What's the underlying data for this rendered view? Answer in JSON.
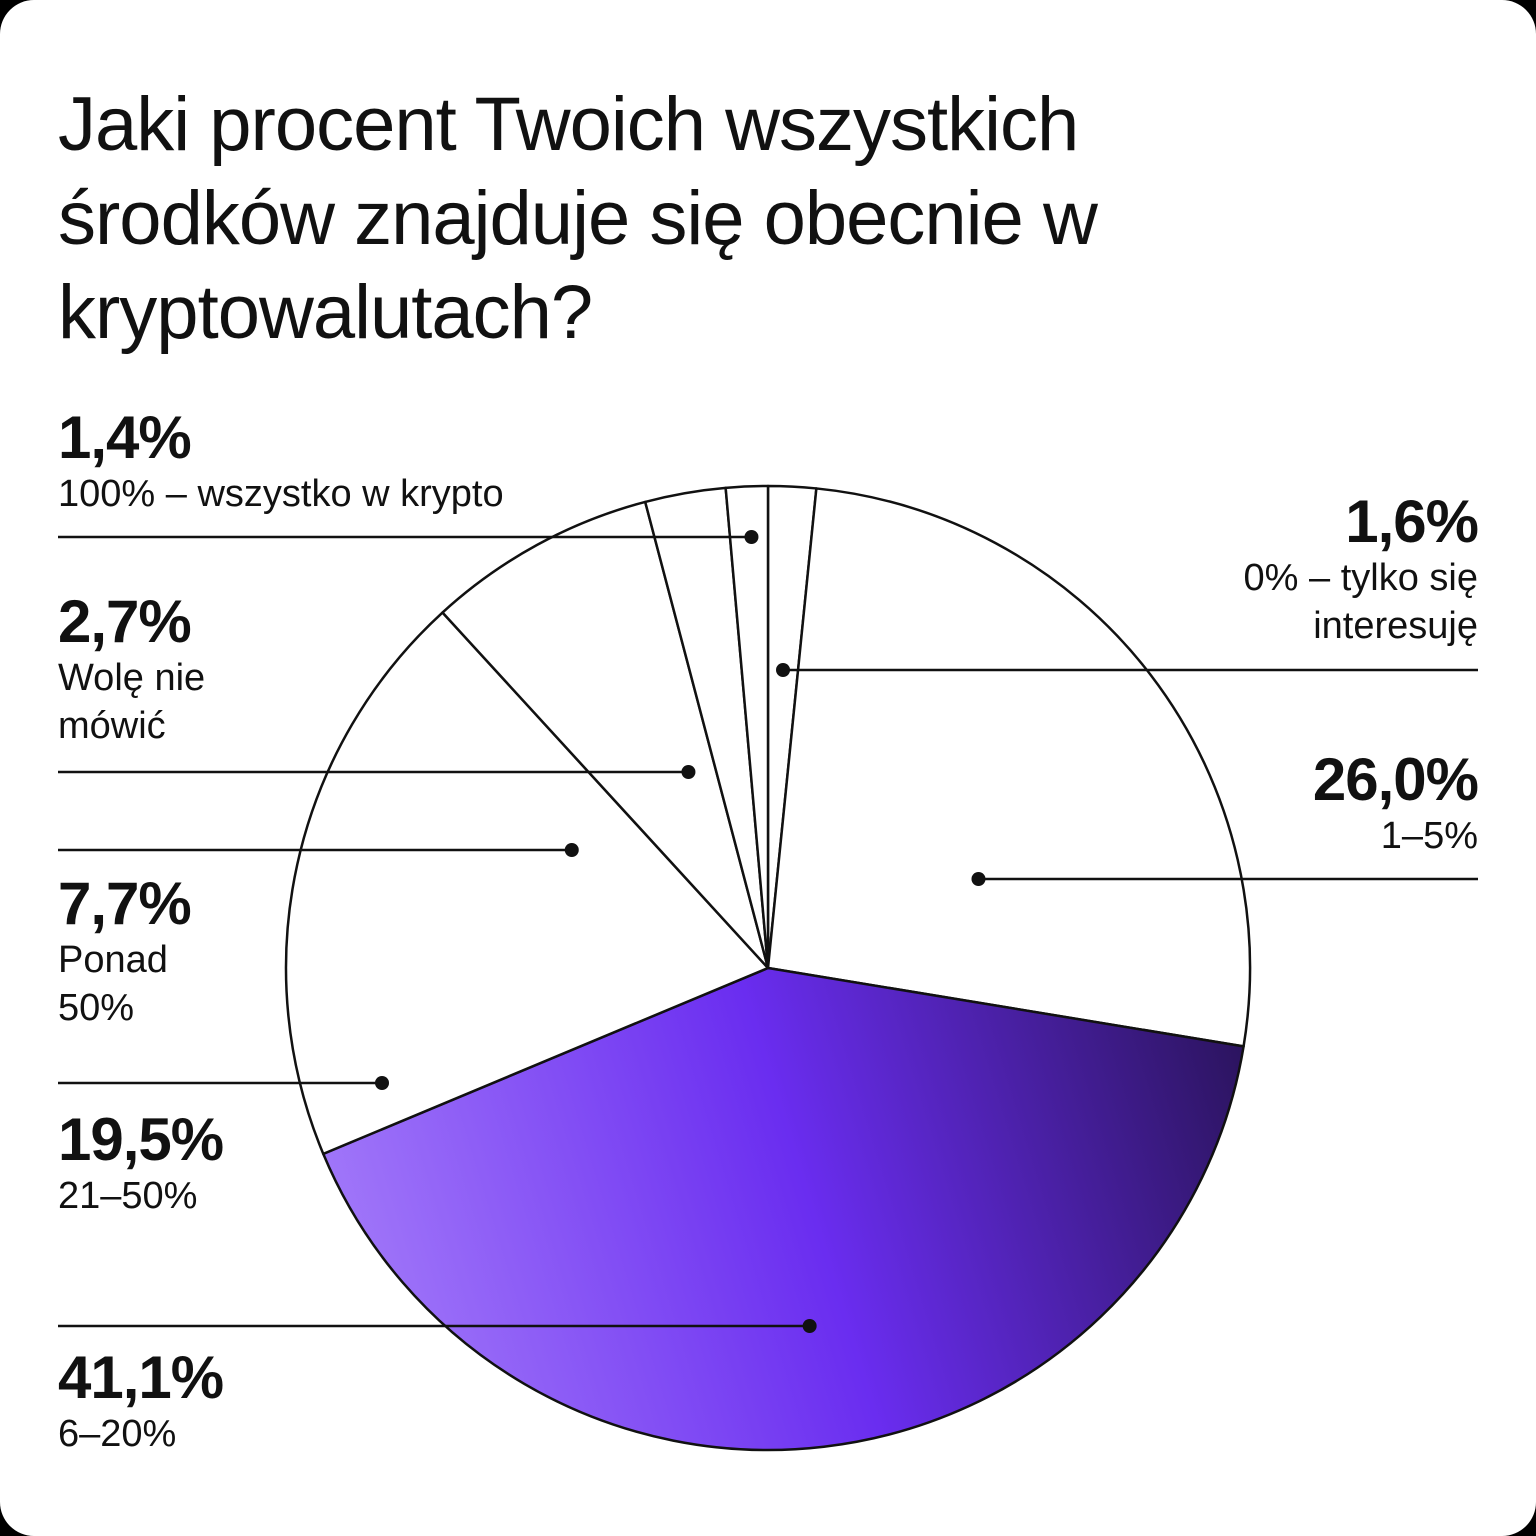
{
  "title": "Jaki procent Twoich wszystkich środków znajduje się obecnie w kryptowalutach?",
  "colors": {
    "background": "#ffffff",
    "outline": "#111111",
    "highlight_gradient": [
      "#a57dfa",
      "#6a2df0",
      "#2c1460"
    ]
  },
  "chart_data": {
    "type": "pie",
    "slices": [
      {
        "value": 1.6,
        "pct_label": "1,6%",
        "category": "0% – tylko się\ninteresuję"
      },
      {
        "value": 26.0,
        "pct_label": "26,0%",
        "category": "1–5%"
      },
      {
        "value": 41.1,
        "pct_label": "41,1%",
        "category": "6–20%",
        "highlighted": true
      },
      {
        "value": 19.5,
        "pct_label": "19,5%",
        "category": "21–50%"
      },
      {
        "value": 7.7,
        "pct_label": "7,7%",
        "category": "Ponad\n50%"
      },
      {
        "value": 2.7,
        "pct_label": "2,7%",
        "category": "Wolę nie\nmówić"
      },
      {
        "value": 1.4,
        "pct_label": "1,4%",
        "category": "100% – wszystko w krypto"
      }
    ]
  }
}
